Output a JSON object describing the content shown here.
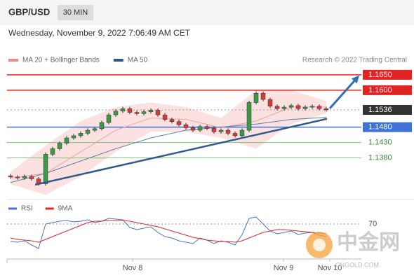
{
  "header": {
    "symbol": "GBP/USD",
    "timeframe": "30 MIN",
    "datetime": "Wednesday, November 9, 2022 7:06:49 AM CET"
  },
  "chart_data": {
    "type": "candlestick",
    "legend": [
      {
        "name": "MA 20 + Bollinger Bands",
        "color": "#f08a8a"
      },
      {
        "name": "MA 50",
        "color": "#2f5a8a"
      }
    ],
    "credit": "Research © 2022 Trading Central",
    "ylim": [
      1.1245,
      1.1677
    ],
    "xlim": [
      -0.5,
      52
    ],
    "open": [
      1.1322,
      1.1318,
      1.1315,
      1.132,
      1.1312,
      1.1296,
      1.1392,
      1.141,
      1.1428,
      1.1445,
      1.1452,
      1.146,
      1.147,
      1.1475,
      1.1495,
      1.152,
      1.1532,
      1.154,
      1.1528,
      1.1524,
      1.153,
      1.1535,
      1.152,
      1.1505,
      1.1498,
      1.1488,
      1.1478,
      1.147,
      1.1482,
      1.1476,
      1.1465,
      1.147,
      1.146,
      1.1452,
      1.147,
      1.156,
      1.159,
      1.157,
      1.1548,
      1.154,
      1.1545,
      1.155,
      1.154,
      1.1545,
      1.1548,
      1.154
    ],
    "high": [
      1.1328,
      1.1324,
      1.1326,
      1.1326,
      1.1318,
      1.1398,
      1.1416,
      1.1434,
      1.1451,
      1.1458,
      1.1466,
      1.1476,
      1.1481,
      1.1501,
      1.1526,
      1.1538,
      1.1546,
      1.1546,
      1.1534,
      1.1536,
      1.1541,
      1.1541,
      1.1526,
      1.1511,
      1.1504,
      1.1494,
      1.1484,
      1.1488,
      1.1488,
      1.1482,
      1.1476,
      1.1476,
      1.1466,
      1.1476,
      1.1566,
      1.1596,
      1.1596,
      1.1576,
      1.1554,
      1.1551,
      1.1556,
      1.1556,
      1.1551,
      1.1554,
      1.1554,
      1.1546
    ],
    "low": [
      1.1312,
      1.1309,
      1.1309,
      1.1306,
      1.129,
      1.129,
      1.1386,
      1.1404,
      1.1422,
      1.1439,
      1.1446,
      1.1454,
      1.1464,
      1.1469,
      1.1489,
      1.1514,
      1.1526,
      1.1522,
      1.1518,
      1.1518,
      1.1524,
      1.1514,
      1.1499,
      1.1492,
      1.1482,
      1.1472,
      1.1464,
      1.1464,
      1.147,
      1.1459,
      1.1459,
      1.1454,
      1.1446,
      1.1446,
      1.1464,
      1.1554,
      1.1564,
      1.1542,
      1.1534,
      1.1534,
      1.1539,
      1.1534,
      1.1534,
      1.1539,
      1.1534,
      1.153
    ],
    "close": [
      1.1318,
      1.1315,
      1.132,
      1.1312,
      1.1296,
      1.1392,
      1.141,
      1.1428,
      1.1445,
      1.1452,
      1.146,
      1.147,
      1.1475,
      1.1495,
      1.152,
      1.1532,
      1.154,
      1.1528,
      1.1524,
      1.153,
      1.1535,
      1.152,
      1.1505,
      1.1498,
      1.1488,
      1.1478,
      1.147,
      1.1482,
      1.1476,
      1.1465,
      1.147,
      1.146,
      1.1452,
      1.147,
      1.156,
      1.159,
      1.157,
      1.1548,
      1.154,
      1.1545,
      1.155,
      1.154,
      1.1545,
      1.1548,
      1.154,
      1.1536
    ],
    "up_color": "#3a9a4a",
    "down_color": "#d83a3a",
    "band": {
      "color": "#fbdada",
      "x": [
        0,
        5,
        10,
        15,
        20,
        25,
        30,
        35,
        40,
        45
      ],
      "upper": [
        1.1335,
        1.142,
        1.15,
        1.1545,
        1.156,
        1.1545,
        1.151,
        1.16,
        1.16,
        1.1565
      ],
      "lower": [
        1.1295,
        1.126,
        1.132,
        1.14,
        1.1465,
        1.1465,
        1.1445,
        1.141,
        1.149,
        1.1525
      ]
    },
    "series": [
      {
        "name": "MA 20",
        "color": "#f3a0a0",
        "x": [
          0,
          5,
          10,
          15,
          20,
          25,
          30,
          35,
          40,
          45
        ],
        "values": [
          1.1315,
          1.133,
          1.14,
          1.147,
          1.151,
          1.1505,
          1.1478,
          1.15,
          1.1545,
          1.1545
        ]
      },
      {
        "name": "MA 50",
        "color": "#5c7ea8",
        "x": [
          0,
          5,
          10,
          15,
          20,
          25,
          30,
          35,
          40,
          45
        ],
        "values": [
          1.13,
          1.133,
          1.137,
          1.141,
          1.1445,
          1.147,
          1.148,
          1.149,
          1.1505,
          1.1512
        ]
      }
    ],
    "levels": [
      {
        "value": 1.165,
        "label": "1.1650",
        "color": "#e02424",
        "filled": true
      },
      {
        "value": 1.16,
        "label": "1.1600",
        "color": "#e02424",
        "filled": true
      },
      {
        "value": 1.1536,
        "label": "1.1536",
        "color": "#333333",
        "filled": true,
        "dotted": true
      },
      {
        "value": 1.148,
        "label": "1.1480",
        "color": "#3f72d6",
        "filled": true
      },
      {
        "value": 1.143,
        "label": "1.1430",
        "color": "#7fbf7f",
        "filled": false
      },
      {
        "value": 1.138,
        "label": "1.1380",
        "color": "#7fbf7f",
        "filled": false
      }
    ],
    "trendline": {
      "color": "#2f5a8a",
      "x": [
        3.5,
        45.1
      ],
      "values": [
        1.1293,
        1.1507
      ]
    },
    "arrow": {
      "color": "#2f6fb8",
      "x": [
        45.5,
        49.7
      ],
      "values": [
        1.1541,
        1.1648
      ]
    },
    "xticks": [
      {
        "value": 17.4,
        "label": "Nov 8"
      },
      {
        "value": 38.9,
        "label": "Nov 9"
      },
      {
        "value": 45.5,
        "label": "Nov 10"
      }
    ],
    "rsi": {
      "ylim": [
        20,
        100
      ],
      "yticks": [
        70
      ],
      "series": [
        {
          "name": "RSI",
          "color": "#4a72c8",
          "values": [
            45,
            44,
            46,
            40,
            35,
            70,
            72,
            74,
            75,
            73,
            74,
            76,
            72,
            74,
            78,
            77,
            76,
            65,
            62,
            64,
            66,
            58,
            52,
            50,
            46,
            44,
            42,
            50,
            47,
            42,
            46,
            44,
            40,
            55,
            78,
            80,
            70,
            60,
            56,
            58,
            60,
            55,
            57,
            58,
            54,
            52
          ]
        },
        {
          "name": "9MA",
          "color": "#d82a2a",
          "values": [
            50,
            48,
            47,
            46,
            44,
            48,
            52,
            56,
            60,
            64,
            68,
            72,
            74,
            74,
            75,
            75,
            75,
            74,
            72,
            70,
            68,
            66,
            63,
            60,
            57,
            54,
            51,
            49,
            47,
            46,
            45,
            45,
            44,
            46,
            50,
            54,
            58,
            60,
            62,
            62,
            61,
            60,
            59,
            58,
            57,
            56
          ]
        }
      ]
    }
  },
  "watermark": {
    "name": "中金网",
    "site": "CNGOLD.COM"
  }
}
